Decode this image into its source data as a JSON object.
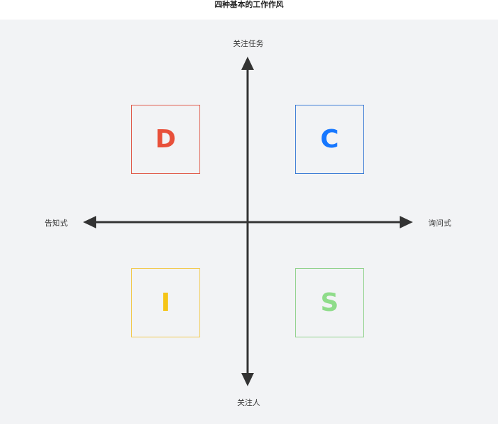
{
  "title": "四种基本的工作作风",
  "axes": {
    "top_label": "关注任务",
    "bottom_label": "关注人",
    "left_label": "告知式",
    "right_label": "询问式"
  },
  "quadrants": [
    {
      "letter": "D",
      "position": "top-left",
      "color": "#e8503a",
      "border_color": "#e05a4a"
    },
    {
      "letter": "C",
      "position": "top-right",
      "color": "#1677ff",
      "border_color": "#3a7bd5"
    },
    {
      "letter": "I",
      "position": "bottom-left",
      "color": "#f5c518",
      "border_color": "#f2c94c"
    },
    {
      "letter": "S",
      "position": "bottom-right",
      "color": "#8fdc8a",
      "border_color": "#8fd18a"
    }
  ],
  "colors": {
    "background": "#f2f3f5",
    "axis": "#333333"
  }
}
